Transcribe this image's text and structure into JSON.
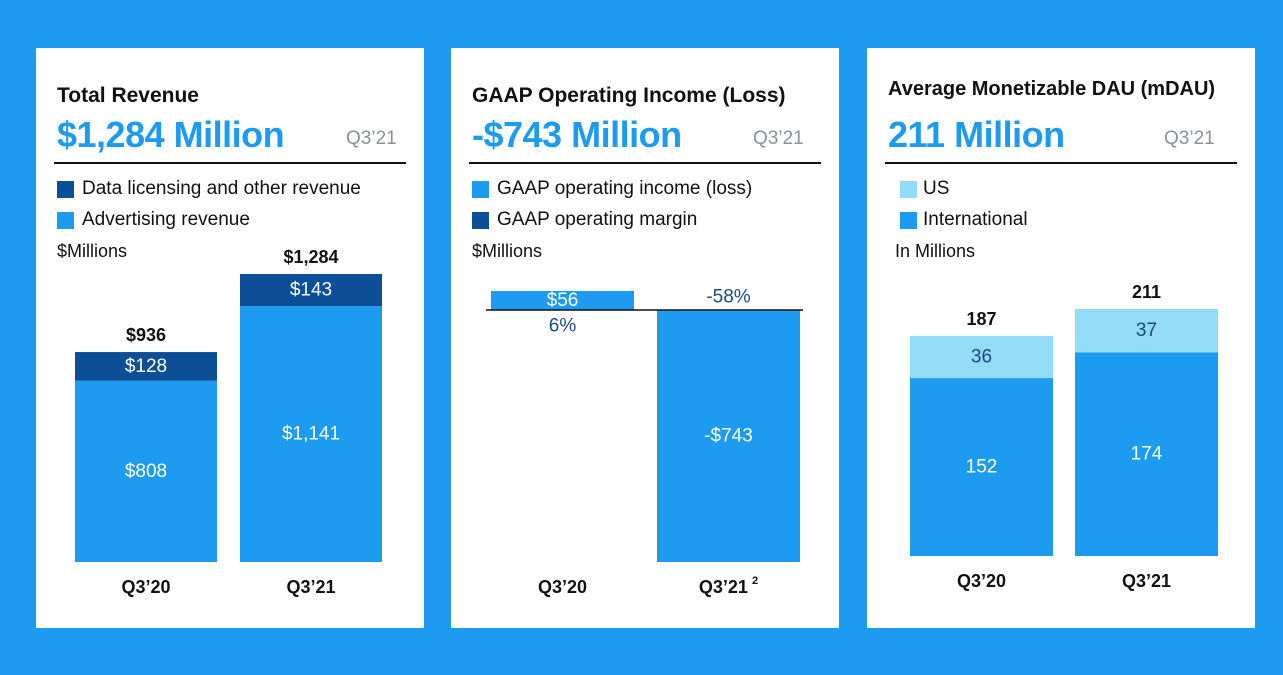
{
  "colors": {
    "background": "#1d9bf0",
    "primary_blue": "#1d9bf0",
    "dark_blue": "#0c4f96",
    "light_blue": "#93dcf8",
    "label_dark": "#1b4a80"
  },
  "panels": [
    {
      "title": "Total Revenue",
      "headline": "$1,284 Million",
      "period": "Q3’21",
      "legend": [
        {
          "label": "Data licensing and other revenue",
          "color": "#0c4f96"
        },
        {
          "label": "Advertising revenue",
          "color": "#1d9bf0"
        }
      ],
      "unit": "$Millions"
    },
    {
      "title": "GAAP Operating Income (Loss)",
      "headline": "-$743 Million",
      "period": "Q3’21",
      "legend": [
        {
          "label": "GAAP operating income (loss)",
          "color": "#1d9bf0"
        },
        {
          "label": "GAAP operating margin",
          "color": "#0c4f96"
        }
      ],
      "unit": "$Millions"
    },
    {
      "title": "Average Monetizable DAU (mDAU)",
      "headline": "211 Million",
      "period": "Q3’21",
      "legend": [
        {
          "label": "US",
          "color": "#93dcf8"
        },
        {
          "label": "International",
          "color": "#1d9bf0"
        }
      ],
      "unit": "In Millions"
    }
  ],
  "chart_data": [
    {
      "type": "bar",
      "stacked": true,
      "title": "Total Revenue",
      "ylabel": "$Millions",
      "categories": [
        "Q3’20",
        "Q3’21"
      ],
      "series": [
        {
          "name": "Advertising revenue",
          "values": [
            808,
            1141
          ],
          "labels": [
            "$808",
            "$1,141"
          ]
        },
        {
          "name": "Data licensing and other revenue",
          "values": [
            128,
            143
          ],
          "labels": [
            "$128",
            "$143"
          ]
        }
      ],
      "totals": [
        936,
        1284
      ],
      "total_labels": [
        "$936",
        "$1,284"
      ],
      "ylim": [
        0,
        1400
      ]
    },
    {
      "type": "bar",
      "title": "GAAP Operating Income (Loss)",
      "ylabel": "$Millions",
      "categories": [
        "Q3’20",
        "Q3’21"
      ],
      "category_footnotes": [
        "",
        "2"
      ],
      "series": [
        {
          "name": "GAAP operating income (loss)",
          "values": [
            56,
            -743
          ],
          "labels": [
            "$56",
            "-$743"
          ]
        },
        {
          "name": "GAAP operating margin",
          "values": [
            6,
            -58
          ],
          "labels": [
            "6%",
            "-58%"
          ],
          "unit": "%"
        }
      ],
      "ylim": [
        -800,
        100
      ]
    },
    {
      "type": "bar",
      "stacked": true,
      "title": "Average Monetizable DAU (mDAU)",
      "ylabel": "In Millions",
      "categories": [
        "Q3’20",
        "Q3’21"
      ],
      "series": [
        {
          "name": "International",
          "values": [
            152,
            174
          ],
          "labels": [
            "152",
            "174"
          ]
        },
        {
          "name": "US",
          "values": [
            36,
            37
          ],
          "labels": [
            "36",
            "37"
          ]
        }
      ],
      "totals": [
        187,
        211
      ],
      "total_labels": [
        "187",
        "211"
      ],
      "ylim": [
        0,
        240
      ]
    }
  ]
}
